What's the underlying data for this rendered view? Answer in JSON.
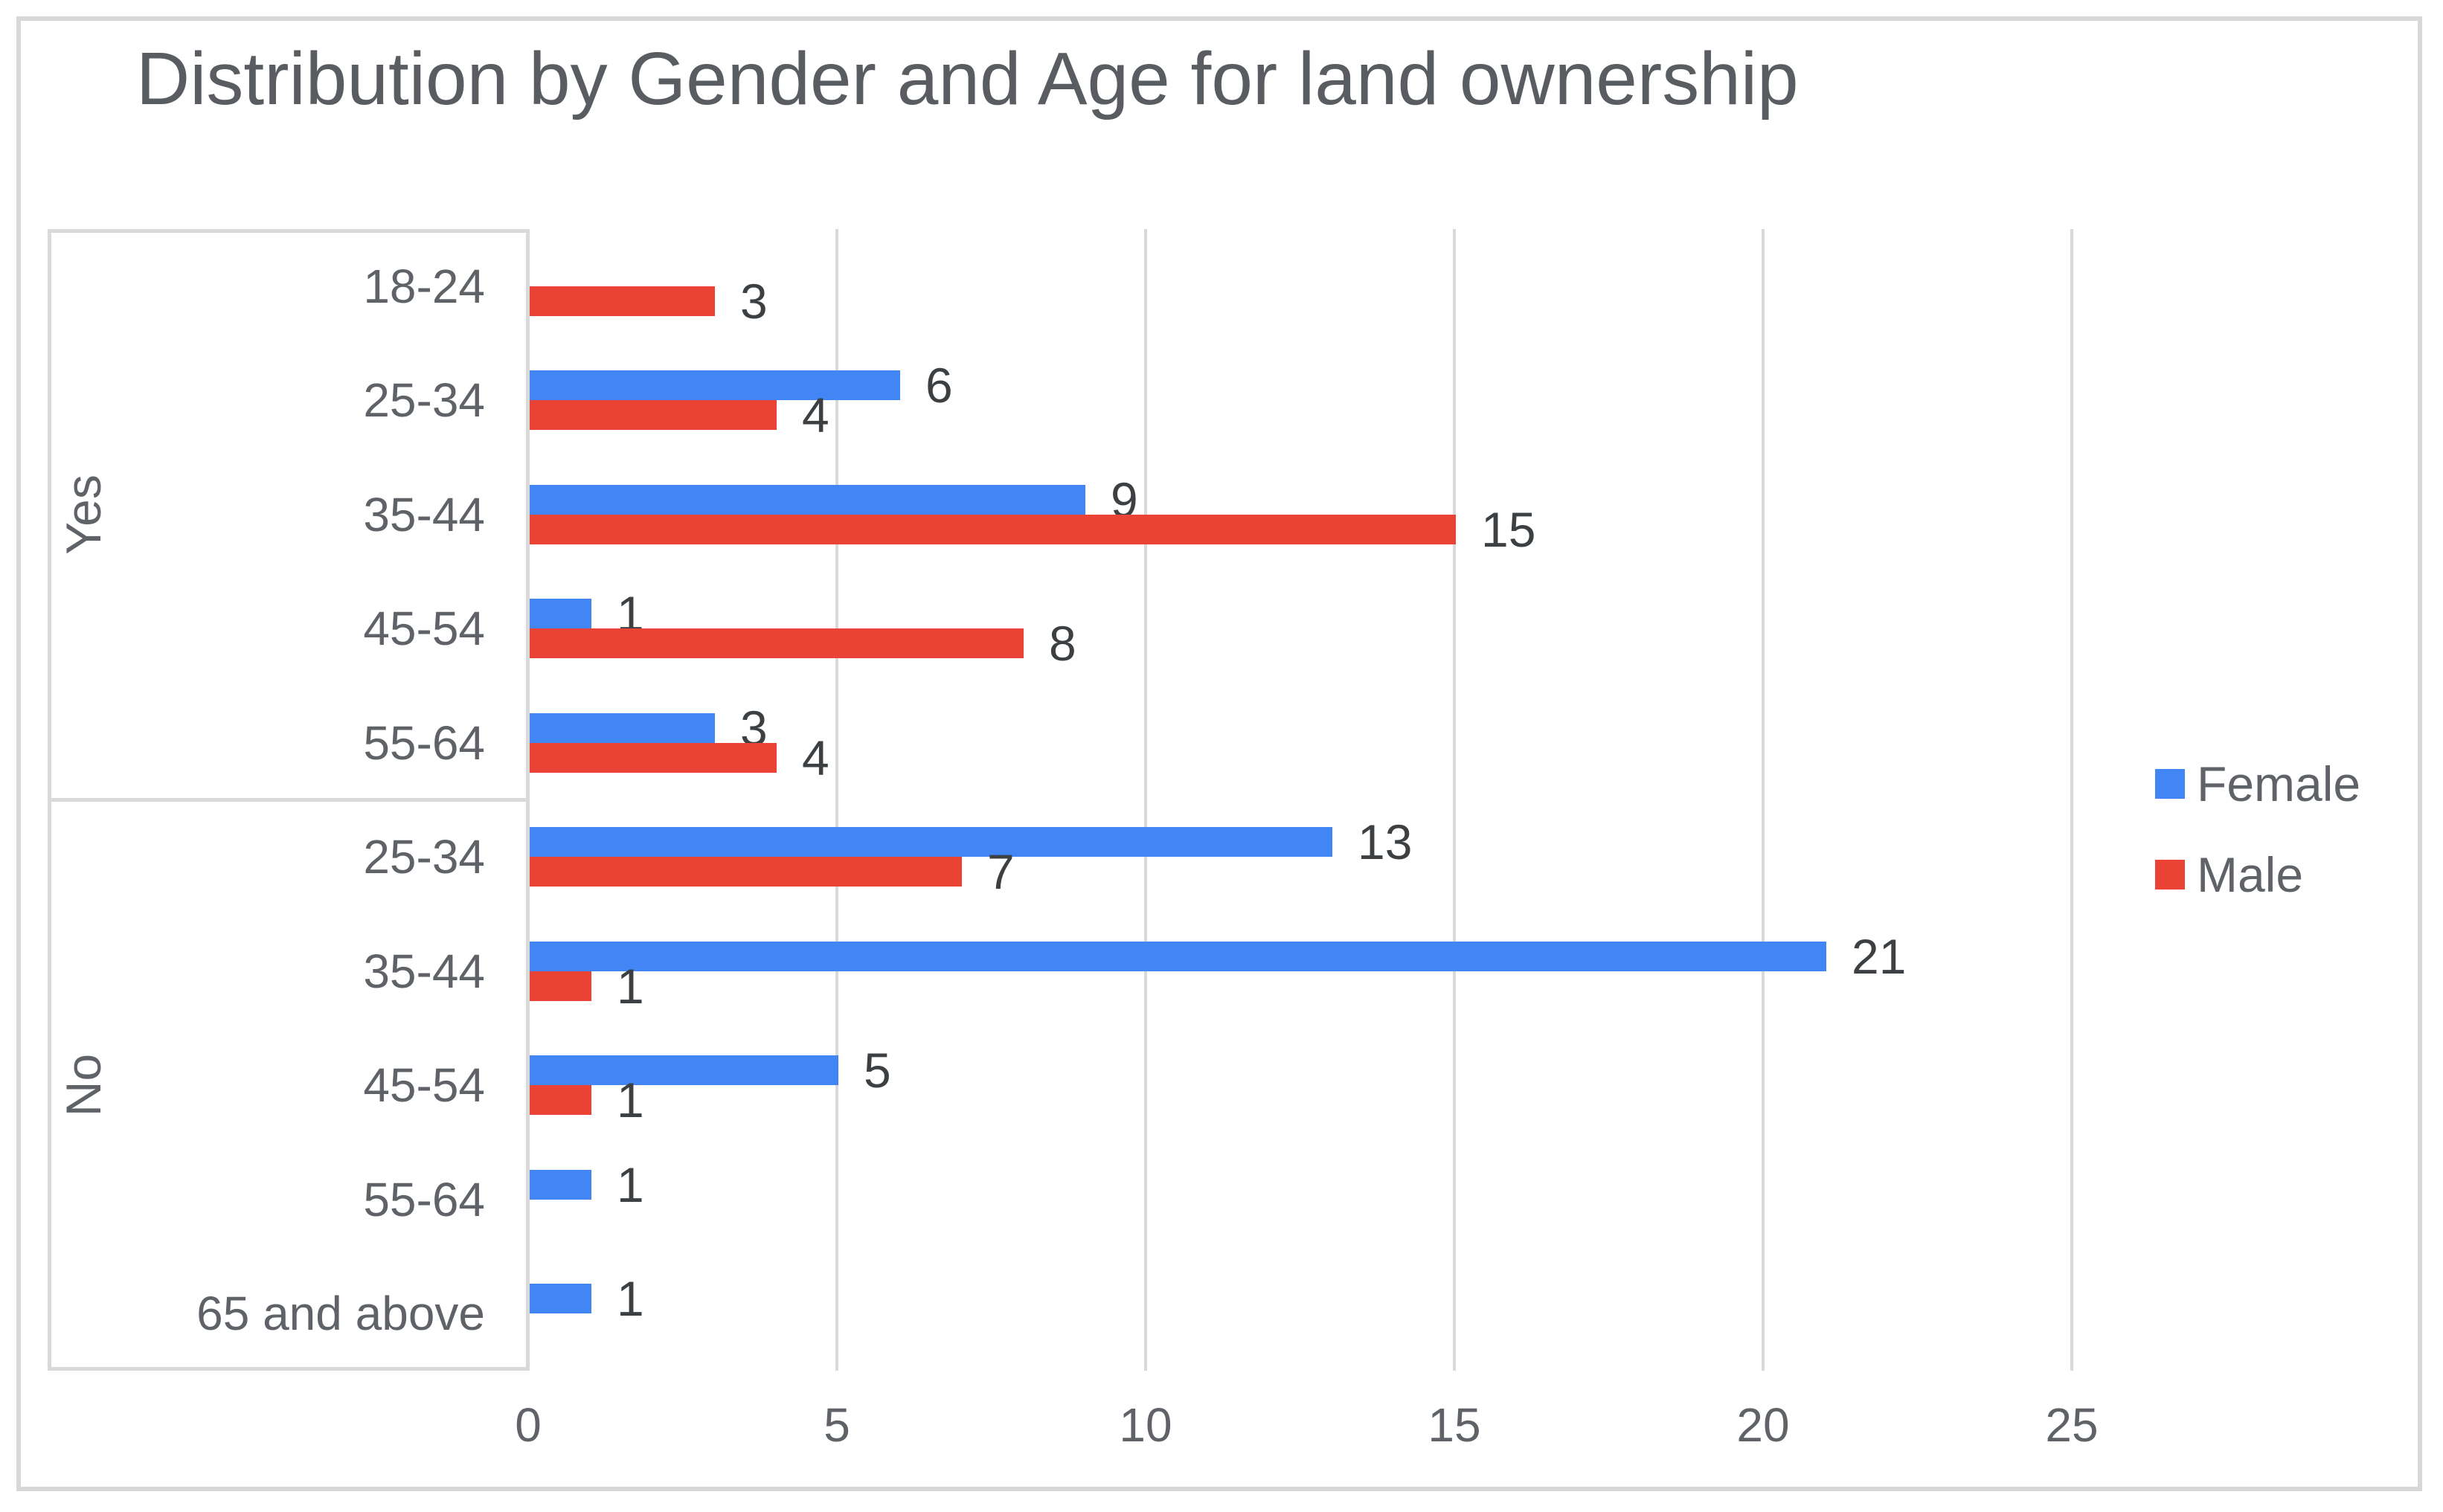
{
  "chart_data": {
    "type": "bar",
    "orientation": "horizontal",
    "title": "Distribution by Gender and Age for land ownership",
    "series": [
      "Female",
      "Male"
    ],
    "series_colors": [
      "#4285F4",
      "#EA4335"
    ],
    "groups": [
      {
        "label": "Yes",
        "categories": [
          {
            "label": "18-24",
            "values": [
              null,
              3
            ]
          },
          {
            "label": "25-34",
            "values": [
              6,
              4
            ]
          },
          {
            "label": "35-44",
            "values": [
              9,
              15
            ]
          },
          {
            "label": "45-54",
            "values": [
              1,
              8
            ]
          },
          {
            "label": "55-64",
            "values": [
              3,
              4
            ]
          }
        ]
      },
      {
        "label": "No",
        "categories": [
          {
            "label": "25-34",
            "values": [
              13,
              7
            ]
          },
          {
            "label": "35-44",
            "values": [
              21,
              1
            ]
          },
          {
            "label": "45-54",
            "values": [
              5,
              1
            ]
          },
          {
            "label": "55-64",
            "values": [
              1,
              null
            ]
          },
          {
            "label": "65 and above",
            "values": [
              1,
              null
            ]
          }
        ]
      }
    ],
    "x_ticks": [
      0,
      5,
      10,
      15,
      20,
      25
    ],
    "xlim": [
      0,
      25.6
    ],
    "grid": true,
    "value_labels": true,
    "legend_position": "right"
  },
  "legend": {
    "items": [
      {
        "label": "Female",
        "color": "#4285F4"
      },
      {
        "label": "Male",
        "color": "#EA4335"
      }
    ]
  },
  "colors": {
    "gridline": "#d9d9d9",
    "outer_border": "#d8d8d8",
    "title_text": "#595c60",
    "axis_label_text": "#5f6368",
    "value_label_text": "#3c4043"
  }
}
